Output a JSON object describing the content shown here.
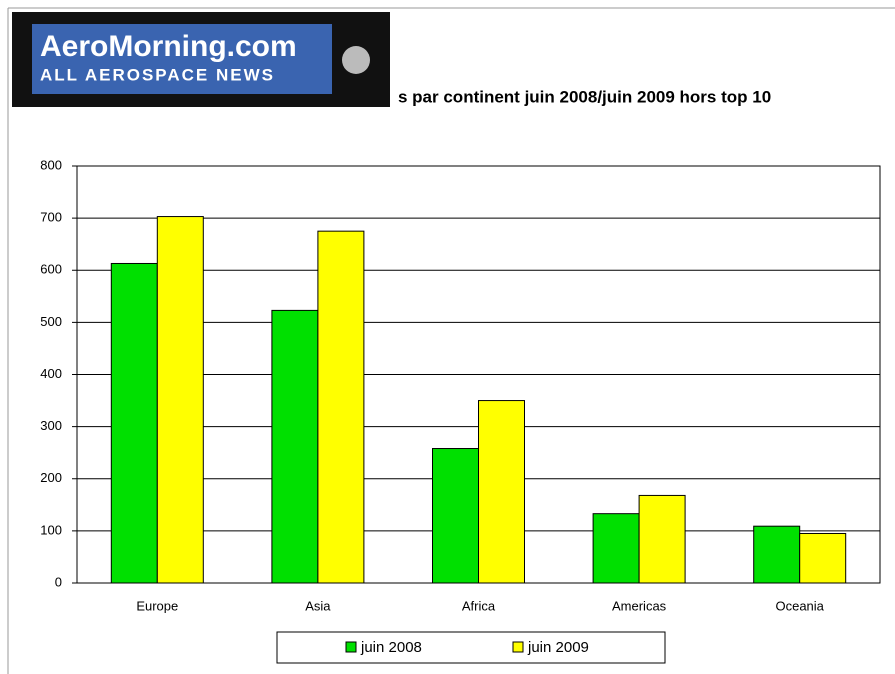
{
  "logo": {
    "name": "AeroMorning.com",
    "tagline": "ALL AEROSPACE NEWS"
  },
  "chart_data": {
    "type": "bar",
    "title": "s par continent juin 2008/juin 2009 hors top 10",
    "categories": [
      "Europe",
      "Asia",
      "Africa",
      "Americas",
      "Oceania"
    ],
    "series": [
      {
        "name": "juin 2008",
        "color": "#00e000",
        "values": [
          613,
          523,
          258,
          133,
          109
        ]
      },
      {
        "name": "juin 2009",
        "color": "#ffff00",
        "values": [
          703,
          675,
          350,
          168,
          95
        ]
      }
    ],
    "ylim": [
      0,
      800
    ],
    "yticks": [
      0,
      100,
      200,
      300,
      400,
      500,
      600,
      700,
      800
    ],
    "grid": true,
    "legend": "bottom"
  }
}
